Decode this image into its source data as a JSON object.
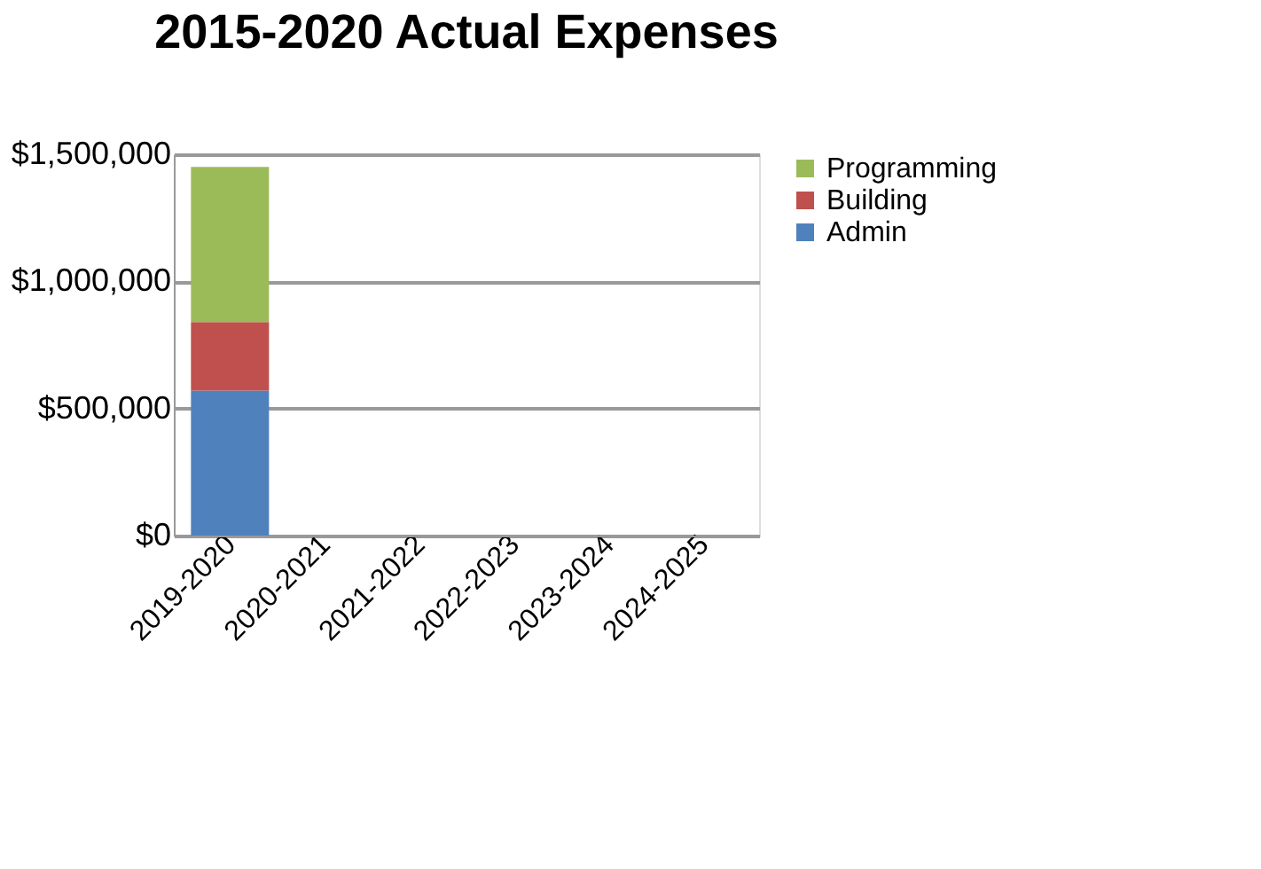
{
  "chart_data": {
    "type": "bar",
    "stacked": true,
    "title": "2015-2020 Actual Expenses",
    "categories": [
      "2019-2020",
      "2020-2021",
      "2021-2022",
      "2022-2023",
      "2023-2024",
      "2024-2025"
    ],
    "series": [
      {
        "name": "Admin",
        "color": "#4f81bd",
        "values": [
          570000,
          null,
          null,
          null,
          null,
          null
        ]
      },
      {
        "name": "Building",
        "color": "#c0504d",
        "values": [
          270000,
          null,
          null,
          null,
          null,
          null
        ]
      },
      {
        "name": "Programming",
        "color": "#9bbb59",
        "values": [
          610000,
          null,
          null,
          null,
          null,
          null
        ]
      }
    ],
    "ylim": [
      0,
      1500000
    ],
    "yticks": [
      {
        "value": 0,
        "label": "$0"
      },
      {
        "value": 500000,
        "label": "$500,000"
      },
      {
        "value": 1000000,
        "label": "$1,000,000"
      },
      {
        "value": 1500000,
        "label": "$1,500,000"
      }
    ],
    "grid": "y",
    "legend": "right"
  }
}
